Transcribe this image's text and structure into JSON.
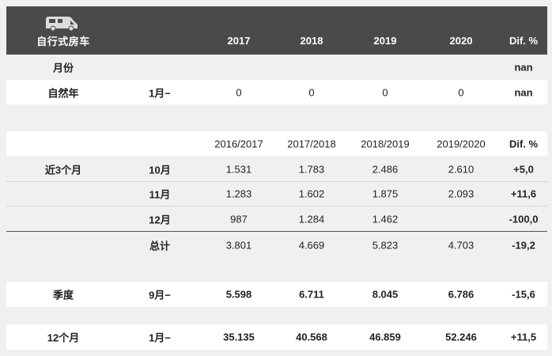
{
  "header": {
    "icon": "rv-camper-icon",
    "title": "自行式房车",
    "years": [
      "2017",
      "2018",
      "2019",
      "2020"
    ],
    "dif": "Dif. %"
  },
  "row_month": {
    "label": "月份",
    "dif": "nan"
  },
  "row_natural": {
    "label": "自然年",
    "sub": "1月−",
    "values": [
      "0",
      "0",
      "0",
      "0"
    ],
    "dif": "nan"
  },
  "header2": {
    "seasons": [
      "2016/2017",
      "2017/2018",
      "2018/2019",
      "2019/2020"
    ],
    "dif": "Dif. %"
  },
  "last3": {
    "label": "近3个月",
    "rows": [
      {
        "sub": "10月",
        "values": [
          "1.531",
          "1.783",
          "2.486",
          "2.610"
        ],
        "dif": "+5,0"
      },
      {
        "sub": "11月",
        "values": [
          "1.283",
          "1.602",
          "1.875",
          "2.093"
        ],
        "dif": "+11,6"
      },
      {
        "sub": "12月",
        "values": [
          "987",
          "1.284",
          "1.462",
          ""
        ],
        "dif": "-100,0"
      }
    ]
  },
  "total": {
    "sub": "总计",
    "values": [
      "3.801",
      "4.669",
      "5.823",
      "4.703"
    ],
    "dif": "-19,2"
  },
  "quarter": {
    "label": "季度",
    "sub": "9月−",
    "values": [
      "5.598",
      "6.711",
      "8.045",
      "6.786"
    ],
    "dif": "-15,6"
  },
  "twelve": {
    "label": "12个月",
    "sub": "1月−",
    "values": [
      "35.135",
      "40.568",
      "46.859",
      "52.246"
    ],
    "dif": "+11,5"
  }
}
